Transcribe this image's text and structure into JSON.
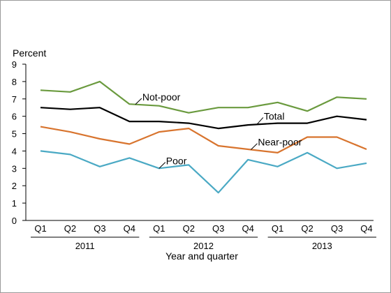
{
  "chart_data": {
    "type": "line",
    "ylabel": "Percent",
    "xlabel": "Year and quarter",
    "ylim": [
      0,
      9
    ],
    "yticks": [
      0,
      1,
      2,
      3,
      4,
      5,
      6,
      7,
      8,
      9
    ],
    "categories": [
      "Q1",
      "Q2",
      "Q3",
      "Q4",
      "Q1",
      "Q2",
      "Q3",
      "Q4",
      "Q1",
      "Q2",
      "Q3",
      "Q4"
    ],
    "year_groups": [
      {
        "label": "2011",
        "quarters": 4
      },
      {
        "label": "2012",
        "quarters": 4
      },
      {
        "label": "2013",
        "quarters": 4
      }
    ],
    "grid": false,
    "series": [
      {
        "name": "Not-poor",
        "color": "#6a9a3e",
        "values": [
          7.5,
          7.4,
          8.0,
          6.7,
          6.6,
          6.2,
          6.5,
          6.5,
          6.8,
          6.3,
          7.1,
          7.0
        ]
      },
      {
        "name": "Total",
        "color": "#000000",
        "values": [
          6.5,
          6.4,
          6.5,
          5.7,
          5.7,
          5.6,
          5.3,
          5.5,
          5.6,
          5.6,
          6.0,
          5.8
        ]
      },
      {
        "name": "Near-poor",
        "color": "#d8742e",
        "values": [
          5.4,
          5.1,
          4.7,
          4.4,
          5.1,
          5.3,
          4.3,
          4.1,
          3.9,
          4.8,
          4.8,
          4.1
        ]
      },
      {
        "name": "Poor",
        "color": "#4aa9c4",
        "values": [
          4.0,
          3.8,
          3.1,
          3.6,
          3.0,
          3.2,
          1.6,
          3.5,
          3.1,
          3.9,
          3.0,
          3.3
        ]
      }
    ]
  }
}
